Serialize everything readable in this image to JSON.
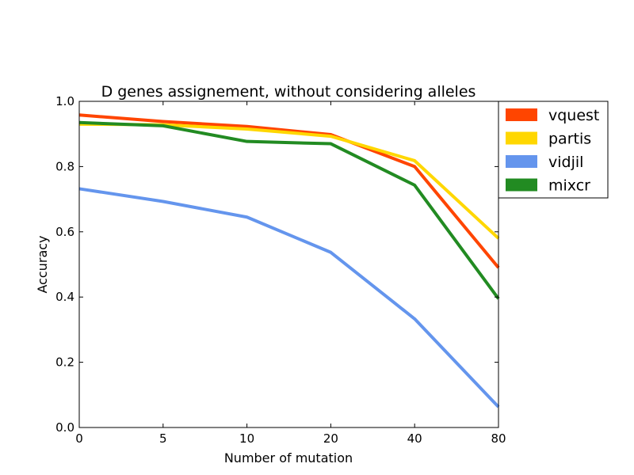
{
  "chart_data": {
    "type": "line",
    "title": "D genes assignement, without considering alleles",
    "xlabel": "Number of mutation",
    "ylabel": "Accuracy",
    "categories": [
      "0",
      "5",
      "10",
      "20",
      "40",
      "80"
    ],
    "ylim": [
      0.0,
      1.0
    ],
    "yticks": [
      "0.0",
      "0.2",
      "0.4",
      "0.6",
      "0.8",
      "1.0"
    ],
    "grid": false,
    "legend_position": "outside-top-right",
    "series": [
      {
        "name": "vquest",
        "color": "#ff4500",
        "values": [
          0.958,
          0.938,
          0.923,
          0.898,
          0.8,
          0.49
        ]
      },
      {
        "name": "partis",
        "color": "#ffd700",
        "values": [
          0.93,
          0.928,
          0.915,
          0.893,
          0.818,
          0.58
        ]
      },
      {
        "name": "vidjil",
        "color": "#6495ed",
        "values": [
          0.732,
          0.693,
          0.645,
          0.537,
          0.333,
          0.063
        ]
      },
      {
        "name": "mixcr",
        "color": "#228b22",
        "values": [
          0.935,
          0.925,
          0.877,
          0.87,
          0.743,
          0.395
        ]
      }
    ]
  }
}
